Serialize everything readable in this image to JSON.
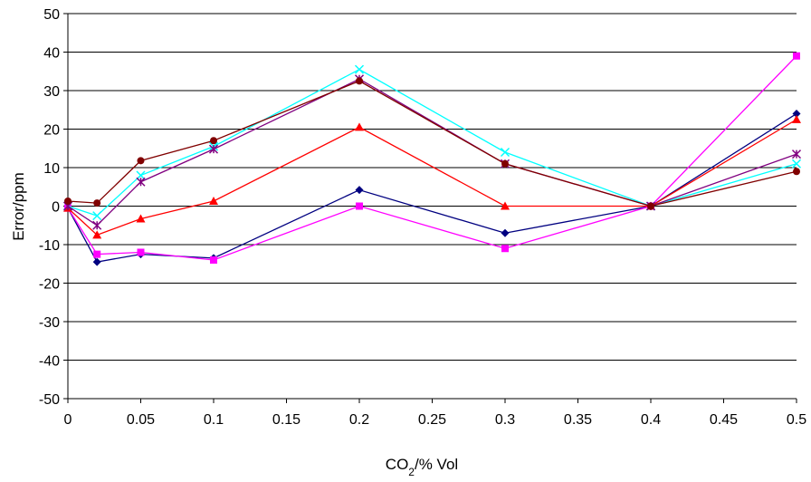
{
  "chart_data": {
    "type": "line",
    "xlabel_main": "CO",
    "xlabel_sub": "2",
    "xlabel_rest": "/% Vol",
    "ylabel": "Error/ppm",
    "xlim": [
      0,
      0.5
    ],
    "ylim": [
      -50,
      50
    ],
    "x_ticks": [
      "0",
      "0.05",
      "0.1",
      "0.15",
      "0.2",
      "0.25",
      "0.3",
      "0.35",
      "0.4",
      "0.45",
      "0.5"
    ],
    "y_ticks": [
      "50",
      "40",
      "30",
      "20",
      "10",
      "0",
      "-10",
      "-20",
      "-30",
      "-40",
      "-50"
    ],
    "grid": "horizontal",
    "x": [
      0,
      0.02,
      0.05,
      0.1,
      0.2,
      0.3,
      0.4,
      0.5
    ],
    "series": [
      {
        "color": "#000080",
        "marker": "diamond",
        "values": [
          -0.5,
          -14.5,
          -12.5,
          -13.5,
          4.2,
          -7,
          0,
          24
        ]
      },
      {
        "color": "#ff00ff",
        "marker": "square",
        "values": [
          -0.5,
          -12.5,
          -12,
          -14,
          0,
          -11,
          0,
          39
        ]
      },
      {
        "color": "#ff0000",
        "marker": "triangle",
        "values": [
          -0.5,
          -7.5,
          -3.3,
          1.3,
          20.5,
          0,
          0,
          22.5
        ]
      },
      {
        "color": "#00ffff",
        "marker": "x",
        "values": [
          0,
          -2.5,
          8,
          15.5,
          35.5,
          14,
          0,
          11
        ]
      },
      {
        "color": "#800080",
        "marker": "star",
        "values": [
          0,
          -5,
          6.3,
          14.8,
          33,
          11,
          0,
          13.5
        ]
      },
      {
        "color": "#800000",
        "marker": "circle",
        "values": [
          1.3,
          0.8,
          11.8,
          17,
          32.5,
          11,
          0,
          9
        ]
      }
    ]
  }
}
